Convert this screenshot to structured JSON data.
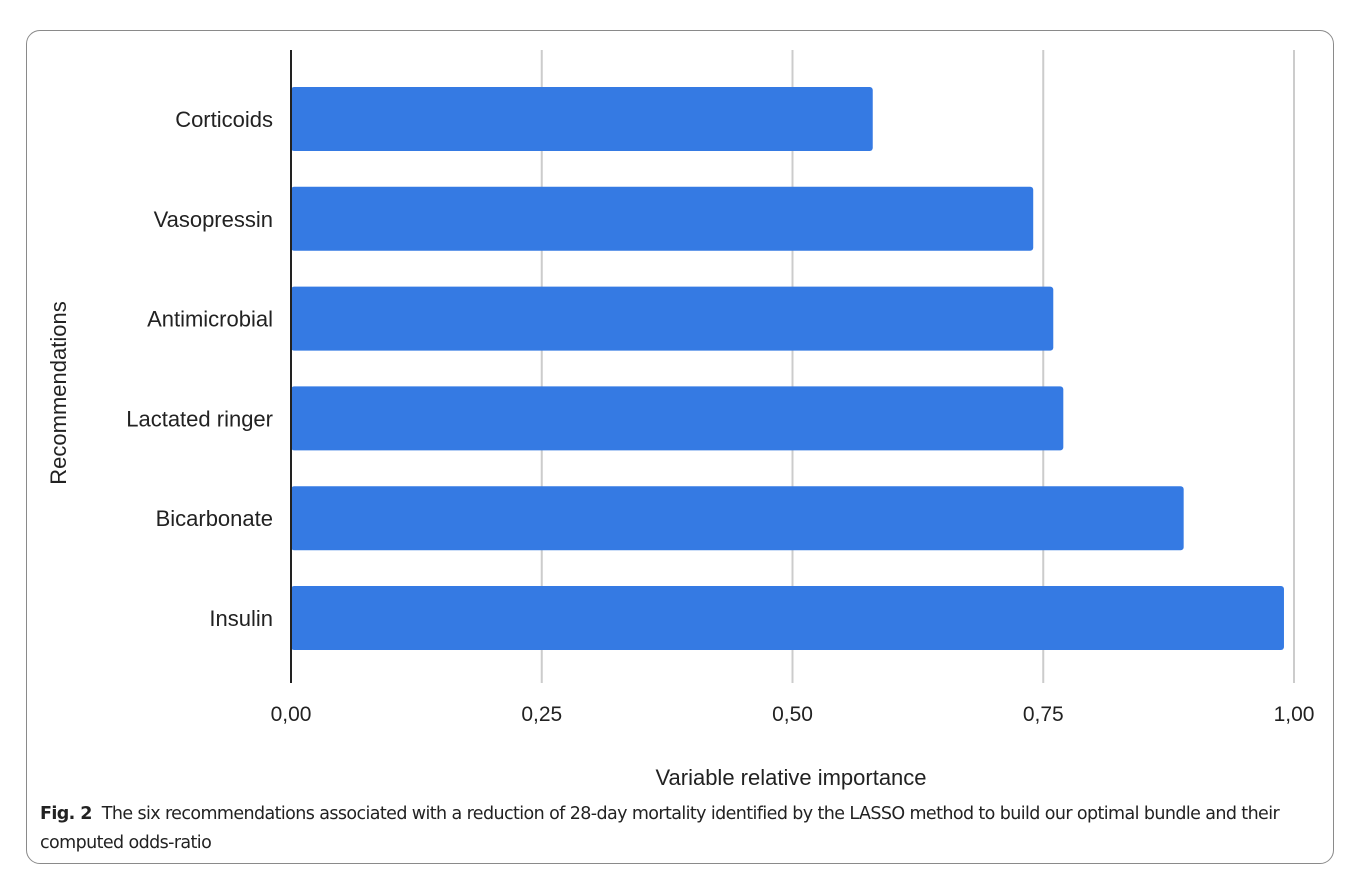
{
  "chart_data": {
    "type": "bar",
    "orientation": "horizontal",
    "categories": [
      "Corticoids",
      "Vasopressin",
      "Antimicrobial",
      "Lactated ringer",
      "Bicarbonate",
      "Insulin"
    ],
    "values": [
      0.58,
      0.74,
      0.76,
      0.77,
      0.89,
      0.99
    ],
    "xlabel": "Variable relative importance",
    "ylabel": "Recommendations",
    "xlim": [
      0,
      1
    ],
    "xticks": [
      0,
      0.25,
      0.5,
      0.75,
      1
    ],
    "xtick_labels": [
      "0,00",
      "0,25",
      "0,50",
      "0,75",
      "1,00"
    ],
    "grid": "vertical",
    "bar_color": "#357ae3"
  },
  "caption": {
    "label": "Fig. 2",
    "text": "The six recommendations associated with a reduction of 28-day mortality identified by the LASSO method to build our optimal bundle and their computed odds-ratio"
  }
}
